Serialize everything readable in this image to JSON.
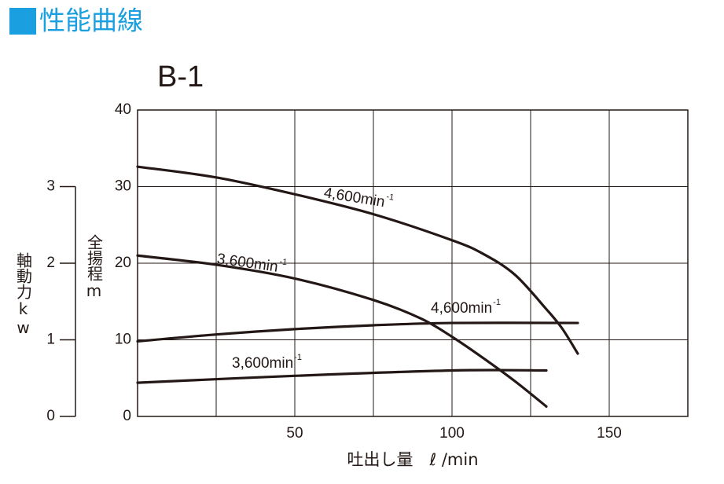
{
  "header": {
    "title": "性能曲線"
  },
  "chart_data": {
    "type": "line",
    "title": "B-1",
    "x_label": "吐出し量　ℓ /min",
    "y_label": "全揚程m",
    "y2_label": "軸動力kw",
    "xlim": [
      0,
      175
    ],
    "xticks": [
      50,
      100,
      150
    ],
    "xgrid": [
      25,
      50,
      75,
      100,
      125,
      150
    ],
    "ylim": [
      0,
      40
    ],
    "yticks": [
      0,
      10,
      20,
      30,
      40
    ],
    "y2lim": [
      0,
      4
    ],
    "y2ticks": [
      0,
      1,
      2,
      3
    ],
    "grid": true,
    "unit_exponent": "-1",
    "series": [
      {
        "name": "4,600min",
        "color": "#231815",
        "axis": "y",
        "x": [
          0,
          25,
          50,
          75,
          100,
          110,
          120,
          130,
          135,
          140
        ],
        "values": [
          32.6,
          31.2,
          29.0,
          26.4,
          23.0,
          21.2,
          18.5,
          14.0,
          11.5,
          8.2
        ]
      },
      {
        "name": "3,600min",
        "color": "#231815",
        "axis": "y",
        "x": [
          0,
          25,
          50,
          75,
          90,
          100,
          110,
          120,
          130
        ],
        "values": [
          21.0,
          19.8,
          18.0,
          15.2,
          12.8,
          10.4,
          7.6,
          4.6,
          1.3
        ]
      },
      {
        "name": "4,600min",
        "color": "#231815",
        "axis": "y2",
        "x": [
          0,
          25,
          50,
          75,
          100,
          140
        ],
        "values": [
          0.98,
          1.07,
          1.14,
          1.19,
          1.22,
          1.22
        ]
      },
      {
        "name": "3,600min",
        "color": "#231815",
        "axis": "y2",
        "x": [
          0,
          50,
          100,
          130
        ],
        "values": [
          0.44,
          0.53,
          0.6,
          0.6
        ]
      }
    ]
  }
}
